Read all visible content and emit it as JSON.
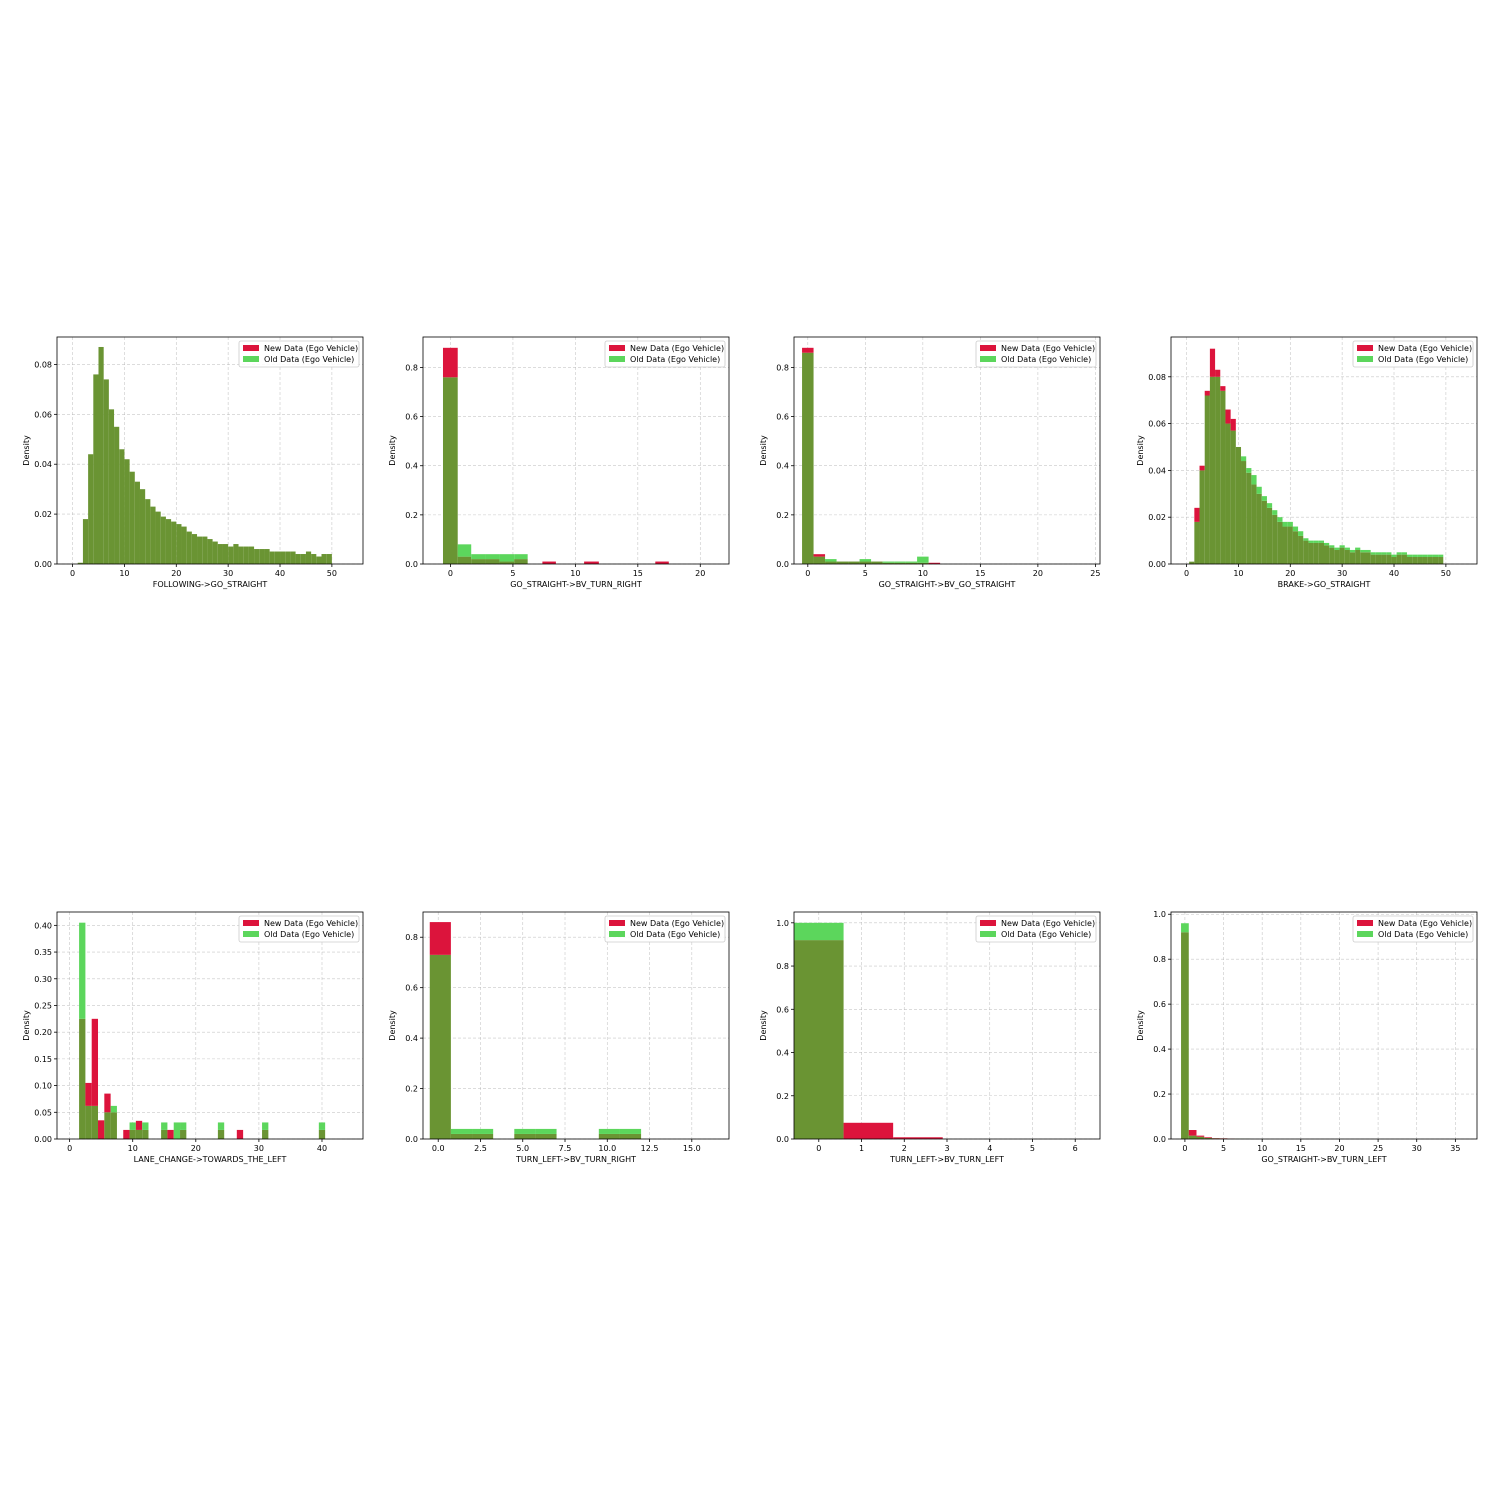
{
  "colors": {
    "new": "#dc143c",
    "old": "#5cd65c",
    "overlap": "#6a9433"
  },
  "legend": {
    "new_label": "New Data (Ego Vehicle)",
    "old_label": "Old Data (Ego Vehicle)",
    "placement": "top-right"
  },
  "chart_data": [
    {
      "type": "bar",
      "xlabel": "FOLLOWING->GO_STRAIGHT",
      "ylabel": "Density",
      "grid": true,
      "xlim": [
        -3,
        56
      ],
      "ylim": [
        0,
        0.091
      ],
      "xticks": [
        0,
        10,
        20,
        30,
        40,
        50
      ],
      "xtick_labels": [
        "0",
        "10",
        "20",
        "30",
        "40",
        "50"
      ],
      "yticks": [
        0,
        0.02,
        0.04,
        0.06,
        0.08
      ],
      "ytick_labels": [
        "0.00",
        "0.02",
        "0.04",
        "0.06",
        "0.08"
      ],
      "bin_edges": [
        1,
        2,
        3,
        4,
        5,
        6,
        7,
        8,
        9,
        10,
        11,
        12,
        13,
        14,
        15,
        16,
        17,
        18,
        19,
        20,
        21,
        22,
        23,
        24,
        25,
        26,
        27,
        28,
        29,
        30,
        31,
        32,
        33,
        34,
        35,
        36,
        37,
        38,
        39,
        40,
        41,
        42,
        43,
        44,
        45,
        46,
        47,
        48,
        49,
        50
      ],
      "series": [
        {
          "name": "New Data (Ego Vehicle)",
          "values": [
            0.0005,
            0.018,
            0.044,
            0.076,
            0.087,
            0.074,
            0.062,
            0.055,
            0.046,
            0.042,
            0.037,
            0.033,
            0.03,
            0.026,
            0.023,
            0.021,
            0.019,
            0.018,
            0.017,
            0.016,
            0.015,
            0.013,
            0.012,
            0.011,
            0.011,
            0.01,
            0.009,
            0.008,
            0.008,
            0.007,
            0.008,
            0.007,
            0.007,
            0.007,
            0.006,
            0.006,
            0.006,
            0.005,
            0.005,
            0.005,
            0.005,
            0.005,
            0.004,
            0.004,
            0.005,
            0.004,
            0.003,
            0.004,
            0.004
          ]
        },
        {
          "name": "Old Data (Ego Vehicle)",
          "values": [
            0.0005,
            0.018,
            0.044,
            0.076,
            0.087,
            0.074,
            0.062,
            0.055,
            0.046,
            0.042,
            0.037,
            0.033,
            0.03,
            0.026,
            0.023,
            0.021,
            0.019,
            0.018,
            0.017,
            0.016,
            0.015,
            0.013,
            0.012,
            0.011,
            0.011,
            0.01,
            0.009,
            0.008,
            0.008,
            0.007,
            0.008,
            0.007,
            0.007,
            0.007,
            0.006,
            0.006,
            0.006,
            0.005,
            0.005,
            0.005,
            0.005,
            0.005,
            0.004,
            0.004,
            0.005,
            0.004,
            0.003,
            0.004,
            0.004
          ]
        }
      ]
    },
    {
      "type": "bar",
      "xlabel": "GO_STRAIGHT->BV_TURN_RIGHT",
      "ylabel": "Density",
      "grid": true,
      "xlim": [
        -2.2,
        22.3
      ],
      "ylim": [
        0,
        0.924
      ],
      "xticks": [
        0,
        5,
        10,
        15,
        20
      ],
      "xtick_labels": [
        "0",
        "5",
        "10",
        "15",
        "20"
      ],
      "yticks": [
        0,
        0.2,
        0.4,
        0.6,
        0.8
      ],
      "ytick_labels": [
        "0.0",
        "0.2",
        "0.4",
        "0.6",
        "0.8"
      ],
      "bin_edges": [
        -0.6,
        0.58,
        1.66,
        2.84,
        3.92,
        5.1,
        6.18,
        7.36,
        8.44,
        9.62,
        10.7,
        11.88,
        12.96,
        14.14,
        15.22,
        16.4,
        17.48
      ],
      "series": [
        {
          "name": "New Data (Ego Vehicle)",
          "values": [
            0.88,
            0.03,
            0.02,
            0.02,
            0.01,
            0.02,
            0,
            0.01,
            0,
            0,
            0.01,
            0,
            0,
            0,
            0,
            0.01
          ]
        },
        {
          "name": "Old Data (Ego Vehicle)",
          "values": [
            0.76,
            0.08,
            0.04,
            0.04,
            0.04,
            0.04,
            0,
            0,
            0,
            0,
            0,
            0,
            0,
            0,
            0,
            0
          ]
        }
      ]
    },
    {
      "type": "bar",
      "xlabel": "GO_STRAIGHT->BV_GO_STRAIGHT",
      "ylabel": "Density",
      "grid": true,
      "xlim": [
        -1.2,
        25.4
      ],
      "ylim": [
        0,
        0.924
      ],
      "xticks": [
        0,
        5,
        10,
        15,
        20,
        25
      ],
      "xtick_labels": [
        "0",
        "5",
        "10",
        "15",
        "20",
        "25"
      ],
      "yticks": [
        0,
        0.2,
        0.4,
        0.6,
        0.8
      ],
      "ytick_labels": [
        "0.0",
        "0.2",
        "0.4",
        "0.6",
        "0.8"
      ],
      "bin_edges": [
        -0.5,
        0.5,
        1.5,
        2.5,
        3.5,
        4.5,
        5.5,
        6.5,
        7.5,
        8.5,
        9.5,
        10.5,
        11.5,
        12.5
      ],
      "series": [
        {
          "name": "New Data (Ego Vehicle)",
          "values": [
            0.88,
            0.04,
            0.01,
            0.01,
            0.01,
            0.01,
            0.01,
            0.005,
            0.005,
            0.005,
            0.005,
            0.005,
            0
          ]
        },
        {
          "name": "Old Data (Ego Vehicle)",
          "values": [
            0.86,
            0.03,
            0.02,
            0.01,
            0.01,
            0.02,
            0.01,
            0.01,
            0.01,
            0.01,
            0.03,
            0,
            0
          ]
        }
      ]
    },
    {
      "type": "bar",
      "xlabel": "BRAKE->GO_STRAIGHT",
      "ylabel": "Density",
      "grid": true,
      "xlim": [
        -3,
        56
      ],
      "ylim": [
        0,
        0.097
      ],
      "xticks": [
        0,
        10,
        20,
        30,
        40,
        50
      ],
      "xtick_labels": [
        "0",
        "10",
        "20",
        "30",
        "40",
        "50"
      ],
      "yticks": [
        0,
        0.02,
        0.04,
        0.06,
        0.08
      ],
      "ytick_labels": [
        "0.00",
        "0.02",
        "0.04",
        "0.06",
        "0.08"
      ],
      "bin_edges": [
        0.5,
        1.5,
        2.5,
        3.5,
        4.5,
        5.5,
        6.5,
        7.5,
        8.5,
        9.5,
        10.5,
        11.5,
        12.5,
        13.5,
        14.5,
        15.5,
        16.5,
        17.5,
        18.5,
        19.5,
        20.5,
        21.5,
        22.5,
        23.5,
        24.5,
        25.5,
        26.5,
        27.5,
        28.5,
        29.5,
        30.5,
        31.5,
        32.5,
        33.5,
        34.5,
        35.5,
        36.5,
        37.5,
        38.5,
        39.5,
        40.5,
        41.5,
        42.5,
        43.5,
        44.5,
        45.5,
        46.5,
        47.5,
        48.5,
        49.5
      ],
      "series": [
        {
          "name": "New Data (Ego Vehicle)",
          "values": [
            0.001,
            0.024,
            0.042,
            0.074,
            0.092,
            0.083,
            0.076,
            0.066,
            0.062,
            0.05,
            0.044,
            0.039,
            0.034,
            0.03,
            0.027,
            0.024,
            0.021,
            0.018,
            0.016,
            0.016,
            0.014,
            0.012,
            0.01,
            0.009,
            0.009,
            0.009,
            0.008,
            0.007,
            0.006,
            0.007,
            0.006,
            0.005,
            0.006,
            0.005,
            0.005,
            0.004,
            0.004,
            0.004,
            0.004,
            0.003,
            0.004,
            0.004,
            0.003,
            0.003,
            0.003,
            0.003,
            0.003,
            0.003,
            0.003
          ]
        },
        {
          "name": "Old Data (Ego Vehicle)",
          "values": [
            0.001,
            0.018,
            0.04,
            0.072,
            0.08,
            0.08,
            0.074,
            0.06,
            0.057,
            0.05,
            0.046,
            0.041,
            0.038,
            0.033,
            0.029,
            0.026,
            0.023,
            0.02,
            0.018,
            0.018,
            0.016,
            0.014,
            0.011,
            0.01,
            0.01,
            0.01,
            0.009,
            0.008,
            0.007,
            0.008,
            0.007,
            0.006,
            0.007,
            0.006,
            0.006,
            0.005,
            0.005,
            0.005,
            0.005,
            0.004,
            0.005,
            0.005,
            0.004,
            0.004,
            0.004,
            0.004,
            0.004,
            0.004,
            0.004
          ]
        }
      ]
    },
    {
      "type": "bar",
      "xlabel": "LANE_CHANGE->TOWARDS_THE_LEFT",
      "ylabel": "Density",
      "grid": true,
      "xlim": [
        -2,
        46.5
      ],
      "ylim": [
        0,
        0.425
      ],
      "xticks": [
        0,
        10,
        20,
        30,
        40
      ],
      "xtick_labels": [
        "0",
        "10",
        "20",
        "30",
        "40"
      ],
      "yticks": [
        0,
        0.05,
        0.1,
        0.15,
        0.2,
        0.25,
        0.3,
        0.35,
        0.4
      ],
      "ytick_labels": [
        "0.00",
        "0.05",
        "0.10",
        "0.15",
        "0.20",
        "0.25",
        "0.30",
        "0.35",
        "0.40"
      ],
      "bin_edges": [
        1.5,
        2.5,
        3.5,
        4.5,
        5.5,
        6.5,
        7.5,
        8.5,
        9.5,
        10.5,
        11.5,
        12.5,
        13.5,
        14.5,
        15.5,
        16.5,
        17.5,
        18.5,
        19.5,
        20.5,
        21.5,
        22.5,
        23.5,
        24.5,
        25.5,
        26.5,
        27.5,
        28.5,
        29.5,
        30.5,
        31.5,
        32.5,
        33.5,
        34.5,
        35.5,
        36.5,
        37.5,
        38.5,
        39.5,
        40.5
      ],
      "series": [
        {
          "name": "New Data (Ego Vehicle)",
          "values": [
            0.225,
            0.105,
            0.225,
            0.035,
            0.085,
            0.05,
            0,
            0.017,
            0.017,
            0.034,
            0.017,
            0,
            0,
            0.017,
            0.017,
            0,
            0.017,
            0,
            0,
            0,
            0,
            0,
            0.017,
            0,
            0,
            0.017,
            0,
            0,
            0,
            0.017,
            0,
            0,
            0,
            0,
            0,
            0,
            0,
            0,
            0.017
          ]
        },
        {
          "name": "Old Data (Ego Vehicle)",
          "values": [
            0.405,
            0.062,
            0.062,
            0,
            0.05,
            0.062,
            0,
            0,
            0.031,
            0.017,
            0.031,
            0,
            0,
            0.031,
            0,
            0.031,
            0.031,
            0,
            0,
            0,
            0,
            0,
            0.031,
            0,
            0,
            0,
            0,
            0,
            0,
            0.031,
            0,
            0,
            0,
            0,
            0,
            0,
            0,
            0,
            0.031
          ]
        }
      ]
    },
    {
      "type": "bar",
      "xlabel": "TURN_LEFT->BV_TURN_RIGHT",
      "ylabel": "Density",
      "grid": true,
      "xlim": [
        -0.9,
        17.2
      ],
      "ylim": [
        0,
        0.9
      ],
      "xticks": [
        0,
        2.5,
        5,
        7.5,
        10,
        12.5,
        15
      ],
      "xtick_labels": [
        "0.0",
        "2.5",
        "5.0",
        "7.5",
        "10.0",
        "12.5",
        "15.0"
      ],
      "yticks": [
        0,
        0.2,
        0.4,
        0.6,
        0.8
      ],
      "ytick_labels": [
        "0.0",
        "0.2",
        "0.4",
        "0.6",
        "0.8"
      ],
      "bin_edges": [
        -0.5,
        0.75,
        2.0,
        3.25,
        4.5,
        5.75,
        7.0,
        8.25,
        9.5,
        10.75,
        12.0
      ],
      "series": [
        {
          "name": "New Data (Ego Vehicle)",
          "values": [
            0.86,
            0.02,
            0.02,
            0,
            0.02,
            0.02,
            0,
            0,
            0.02,
            0.02
          ]
        },
        {
          "name": "Old Data (Ego Vehicle)",
          "values": [
            0.73,
            0.04,
            0.04,
            0,
            0.04,
            0.04,
            0,
            0,
            0.04,
            0.04
          ]
        }
      ]
    },
    {
      "type": "bar",
      "xlabel": "TURN_LEFT->BV_TURN_LEFT",
      "ylabel": "Density",
      "grid": true,
      "xlim": [
        -0.58,
        6.58
      ],
      "ylim": [
        0,
        1.05
      ],
      "xticks": [
        0,
        1,
        2,
        3,
        4,
        5,
        6
      ],
      "xtick_labels": [
        "0",
        "1",
        "2",
        "3",
        "4",
        "5",
        "6"
      ],
      "yticks": [
        0,
        0.2,
        0.4,
        0.6,
        0.8,
        1.0
      ],
      "ytick_labels": [
        "0.0",
        "0.2",
        "0.4",
        "0.6",
        "0.8",
        "1.0"
      ],
      "bin_edges": [
        -0.58,
        0.58,
        1.74,
        2.9
      ],
      "series": [
        {
          "name": "New Data (Ego Vehicle)",
          "values": [
            0.92,
            0.075,
            0.008
          ]
        },
        {
          "name": "Old Data (Ego Vehicle)",
          "values": [
            1.0,
            0,
            0
          ]
        }
      ]
    },
    {
      "type": "bar",
      "xlabel": "GO_STRAIGHT->BV_TURN_LEFT",
      "ylabel": "Density",
      "grid": true,
      "xlim": [
        -1.8,
        37.8
      ],
      "ylim": [
        0,
        1.01
      ],
      "xticks": [
        0,
        5,
        10,
        15,
        20,
        25,
        30,
        35
      ],
      "xtick_labels": [
        "0",
        "5",
        "10",
        "15",
        "20",
        "25",
        "30",
        "35"
      ],
      "yticks": [
        0,
        0.2,
        0.4,
        0.6,
        0.8,
        1.0
      ],
      "ytick_labels": [
        "0.0",
        "0.2",
        "0.4",
        "0.6",
        "0.8",
        "1.0"
      ],
      "bin_edges": [
        -0.5,
        0.5,
        1.5,
        2.5,
        3.5,
        4.5,
        5.5,
        6.5,
        7.5,
        8.5
      ],
      "series": [
        {
          "name": "New Data (Ego Vehicle)",
          "values": [
            0.92,
            0.04,
            0.015,
            0.008,
            0.004,
            0.003,
            0.002,
            0.001,
            0.001
          ]
        },
        {
          "name": "Old Data (Ego Vehicle)",
          "values": [
            0.96,
            0.015,
            0.01,
            0.005,
            0.003,
            0.002,
            0.001,
            0.001,
            0.001
          ]
        }
      ]
    }
  ]
}
